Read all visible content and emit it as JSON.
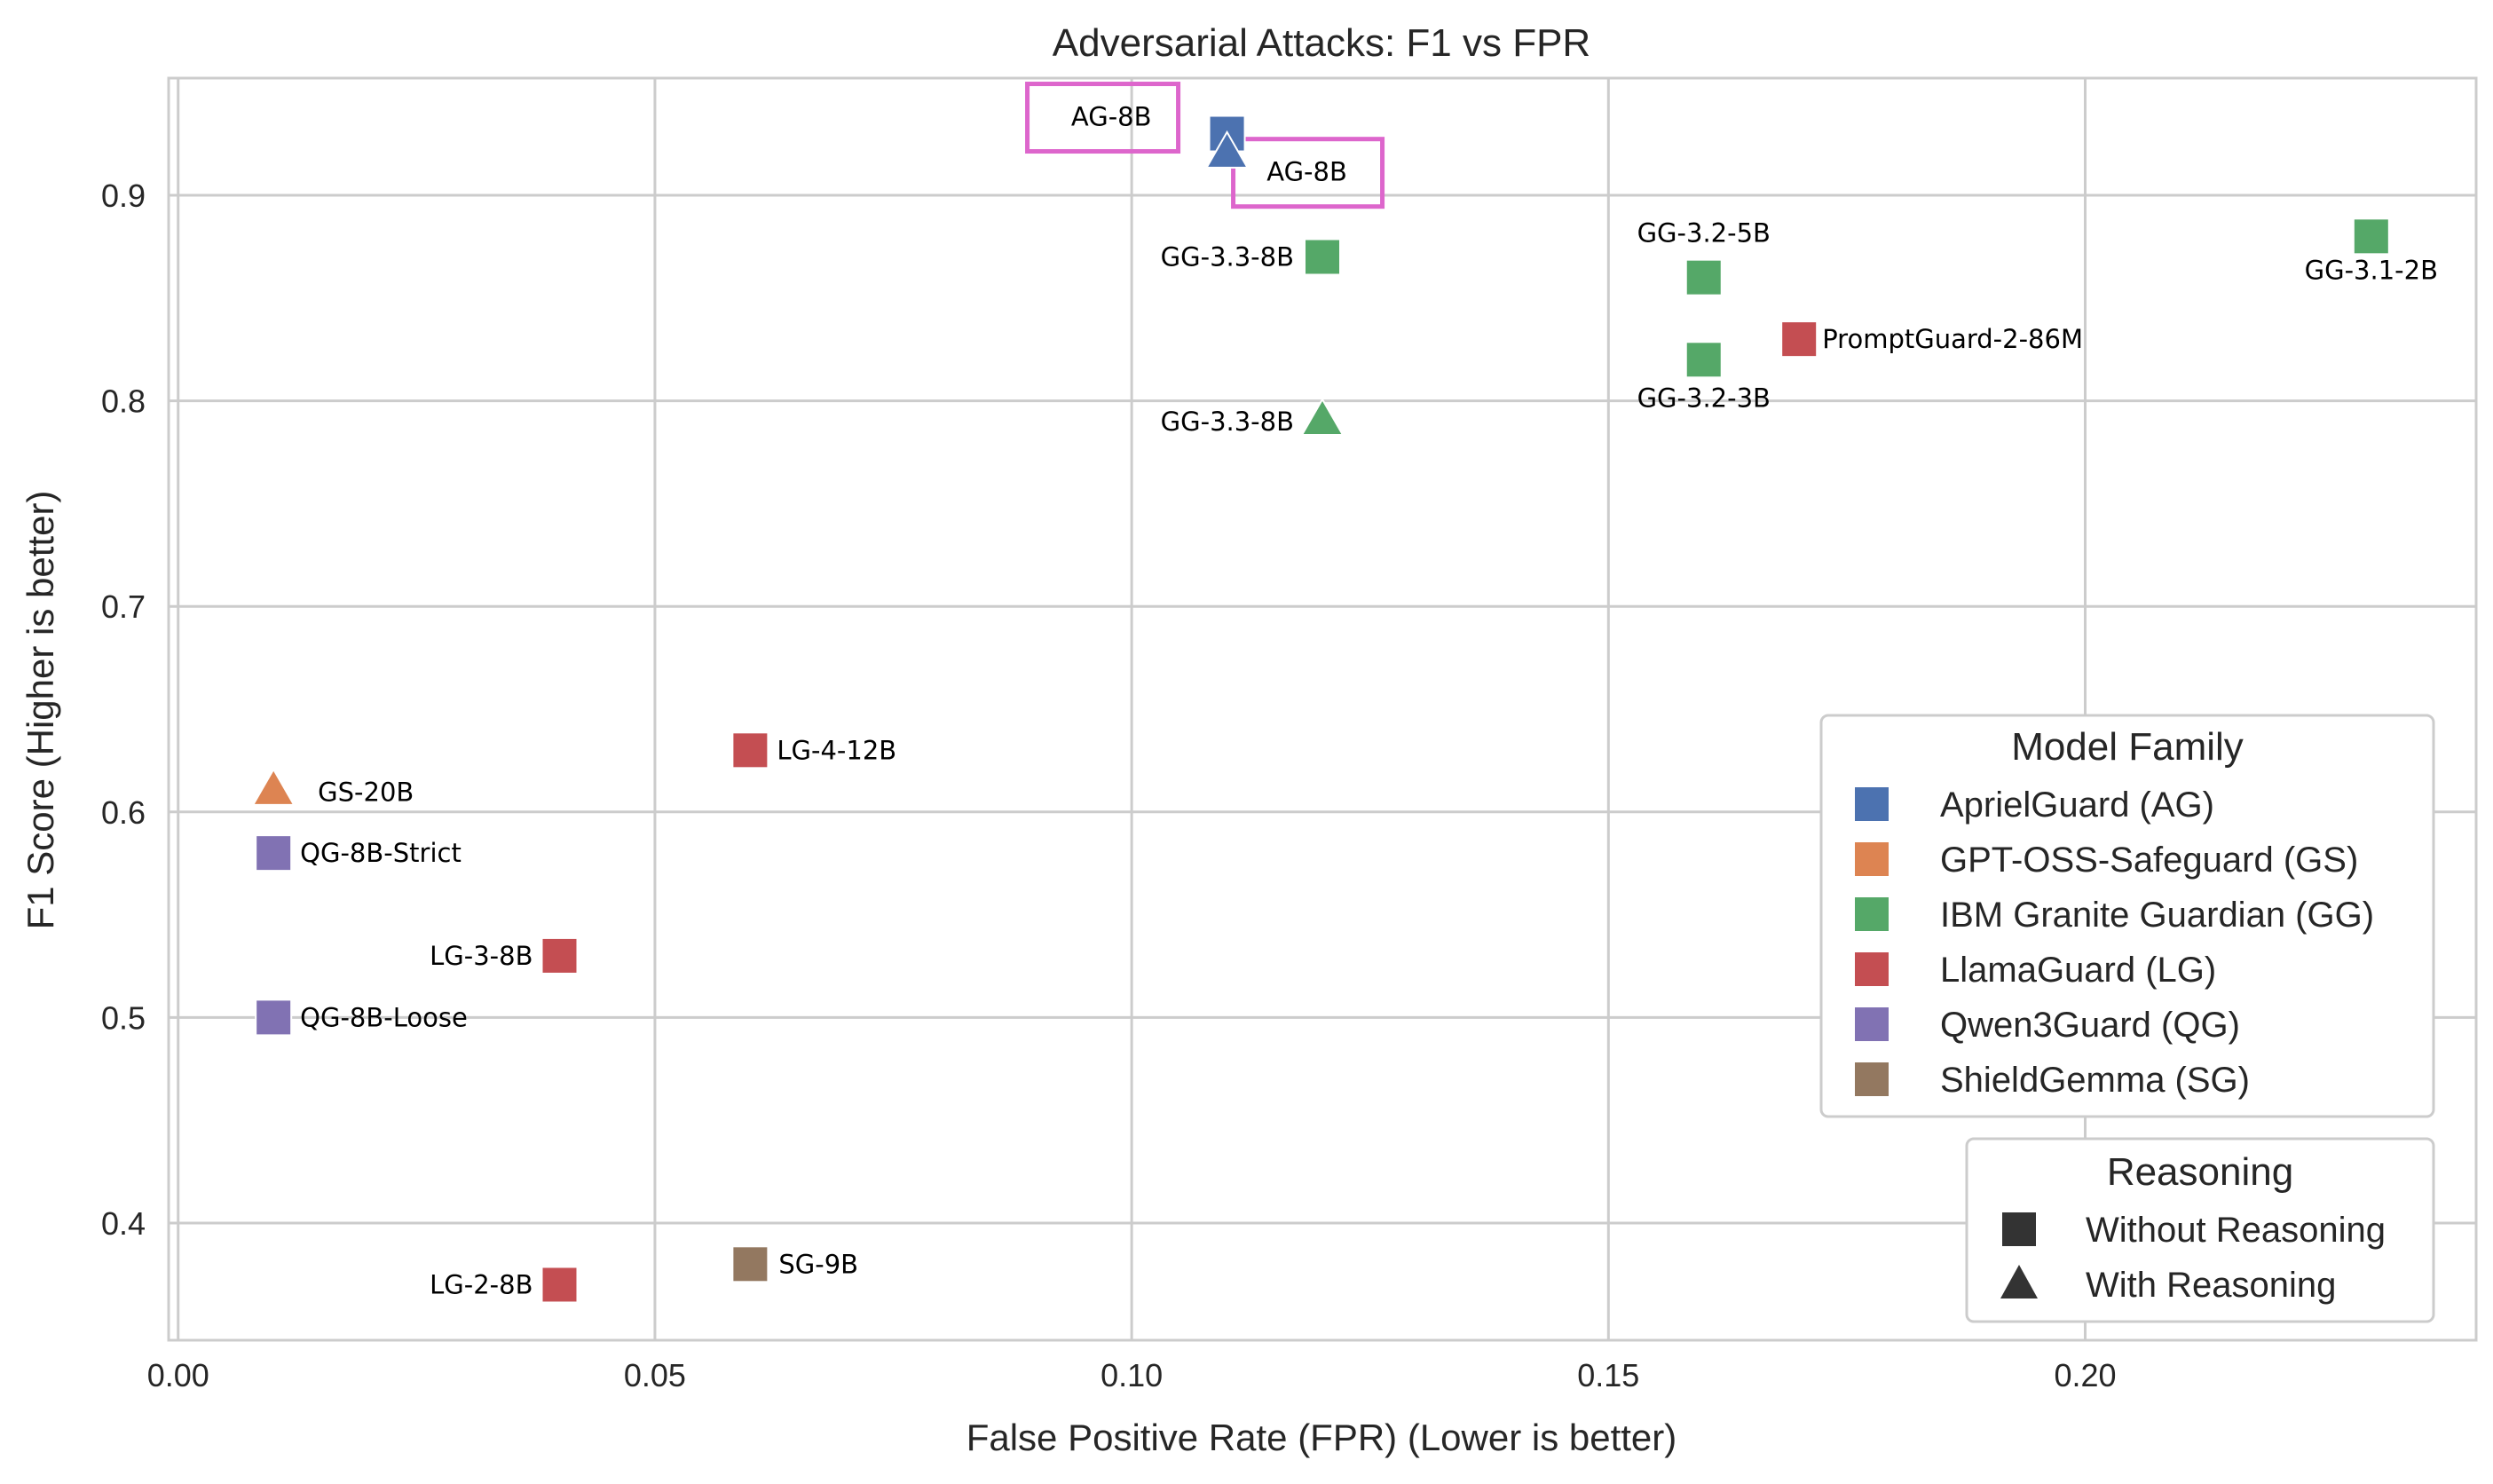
{
  "chart_data": {
    "type": "scatter",
    "title": "Adversarial Attacks: F1 vs FPR",
    "xlabel": "False Positive Rate (FPR) (Lower is better)",
    "ylabel": "F1 Score (Higher is better)",
    "xlim": [
      -0.001,
      0.241
    ],
    "ylim": [
      0.343,
      0.957
    ],
    "xticks": [
      0.0,
      0.05,
      0.1,
      0.15,
      0.2
    ],
    "xtick_labels": [
      "0.00",
      "0.05",
      "0.10",
      "0.15",
      "0.20"
    ],
    "yticks": [
      0.4,
      0.5,
      0.6,
      0.7,
      0.8,
      0.9
    ],
    "ytick_labels": [
      "0.4",
      "0.5",
      "0.6",
      "0.7",
      "0.8",
      "0.9"
    ],
    "grid": true,
    "points": [
      {
        "label": "AG-8B",
        "family": "AG",
        "reasoning": false,
        "x": 0.11,
        "y": 0.93,
        "highlight": true
      },
      {
        "label": "AG-8B",
        "family": "AG",
        "reasoning": true,
        "x": 0.11,
        "y": 0.92,
        "highlight": true
      },
      {
        "label": "GS-20B",
        "family": "GS",
        "reasoning": true,
        "x": 0.01,
        "y": 0.61
      },
      {
        "label": "GG-3.3-8B",
        "family": "GG",
        "reasoning": false,
        "x": 0.12,
        "y": 0.87
      },
      {
        "label": "GG-3.3-8B",
        "family": "GG",
        "reasoning": true,
        "x": 0.12,
        "y": 0.79
      },
      {
        "label": "GG-3.2-5B",
        "family": "GG",
        "reasoning": false,
        "x": 0.16,
        "y": 0.86
      },
      {
        "label": "GG-3.2-3B",
        "family": "GG",
        "reasoning": false,
        "x": 0.16,
        "y": 0.82
      },
      {
        "label": "GG-3.1-2B",
        "family": "GG",
        "reasoning": false,
        "x": 0.23,
        "y": 0.88
      },
      {
        "label": "PromptGuard-2-86M",
        "family": "LG",
        "reasoning": false,
        "x": 0.17,
        "y": 0.83
      },
      {
        "label": "LG-4-12B",
        "family": "LG",
        "reasoning": false,
        "x": 0.06,
        "y": 0.63
      },
      {
        "label": "LG-3-8B",
        "family": "LG",
        "reasoning": false,
        "x": 0.04,
        "y": 0.53
      },
      {
        "label": "LG-2-8B",
        "family": "LG",
        "reasoning": false,
        "x": 0.04,
        "y": 0.37
      },
      {
        "label": "QG-8B-Strict",
        "family": "QG",
        "reasoning": false,
        "x": 0.01,
        "y": 0.58
      },
      {
        "label": "QG-8B-Loose",
        "family": "QG",
        "reasoning": false,
        "x": 0.01,
        "y": 0.5
      },
      {
        "label": "SG-9B",
        "family": "SG",
        "reasoning": false,
        "x": 0.06,
        "y": 0.38
      }
    ],
    "legend_family": {
      "title": "Model Family",
      "placement": "right",
      "entries": [
        {
          "key": "AG",
          "label": "AprielGuard (AG)",
          "color": "#4c72b0"
        },
        {
          "key": "GS",
          "label": "GPT-OSS-Safeguard (GS)",
          "color": "#dd8452"
        },
        {
          "key": "GG",
          "label": "IBM Granite Guardian (GG)",
          "color": "#55a868"
        },
        {
          "key": "LG",
          "label": "LlamaGuard (LG)",
          "color": "#c44e52"
        },
        {
          "key": "QG",
          "label": "Qwen3Guard (QG)",
          "color": "#8172b3"
        },
        {
          "key": "SG",
          "label": "ShieldGemma (SG)",
          "color": "#937860"
        }
      ]
    },
    "legend_reasoning": {
      "title": "Reasoning",
      "placement": "lower right",
      "entries": [
        {
          "marker": "square",
          "label": "Without Reasoning"
        },
        {
          "marker": "triangle",
          "label": "With Reasoning"
        }
      ]
    },
    "highlight_color": "#dd66cc"
  }
}
